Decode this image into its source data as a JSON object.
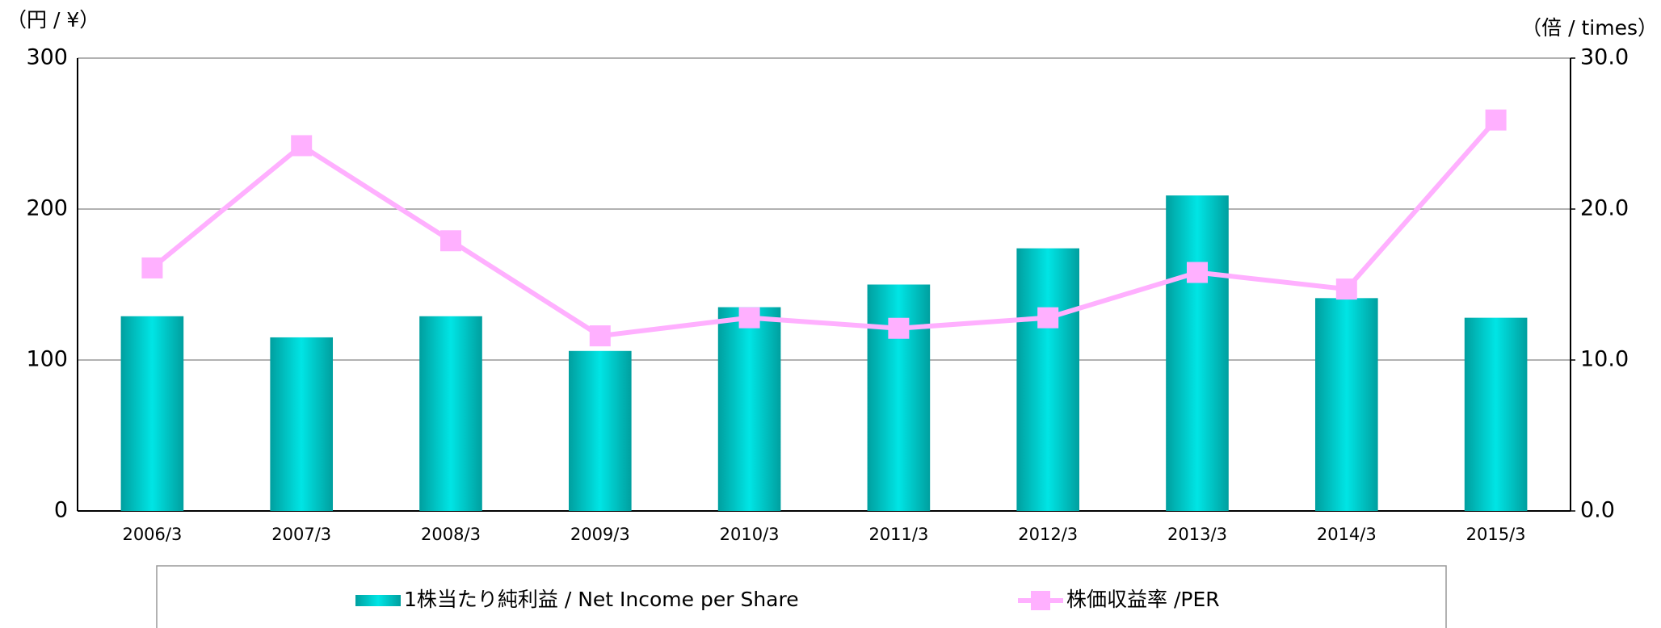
{
  "chart_data": {
    "type": "bar-line",
    "y_unit_label": "（円 / ¥）",
    "y2_unit_label": "（倍 / times）",
    "categories": [
      "2006/3",
      "2007/3",
      "2008/3",
      "2009/3",
      "2010/3",
      "2011/3",
      "2012/3",
      "2013/3",
      "2014/3",
      "2015/3"
    ],
    "series": [
      {
        "name": "1株当たり純利益 / Net Income per Share",
        "type": "bar",
        "color": "#00e5e5",
        "values": [
          129,
          115,
          129,
          106,
          135,
          150,
          174,
          209,
          141,
          128
        ]
      },
      {
        "name": "株価収益率 /PER",
        "type": "line",
        "axis": "y2",
        "color": "#ffb0ff",
        "values": [
          16.1,
          24.2,
          17.9,
          11.6,
          12.8,
          12.1,
          12.8,
          15.8,
          14.7,
          25.9
        ]
      }
    ],
    "ylim": [
      0,
      300
    ],
    "yticks": [
      0,
      100,
      200,
      300
    ],
    "y2lim": [
      0,
      30
    ],
    "y2ticks": [
      {
        "value": 0,
        "label": "0.0"
      },
      {
        "value": 10,
        "label": "10.0"
      },
      {
        "value": 20,
        "label": "20.0"
      },
      {
        "value": 30,
        "label": "30.0"
      }
    ],
    "grid": true,
    "legend": "bottom"
  }
}
